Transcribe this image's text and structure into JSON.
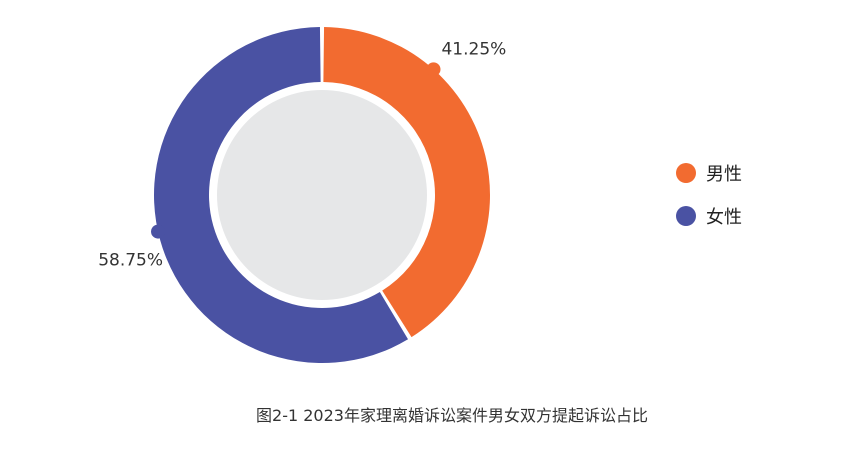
{
  "chart_data": {
    "type": "pie",
    "title": "图2-1  2023年家理离婚诉讼案件男女双方提起诉讼占比",
    "categories": [
      "男性",
      "女性"
    ],
    "values": [
      41.25,
      58.75
    ],
    "data_labels": [
      "41.25%",
      "58.75%"
    ],
    "colors": [
      "#F26B30",
      "#4A52A3"
    ],
    "hole_color": "#E6E7E8",
    "legend_position": "right",
    "grid": false
  }
}
